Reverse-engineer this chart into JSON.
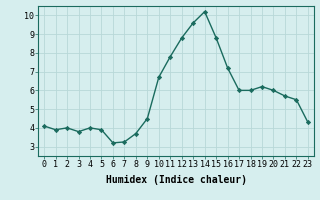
{
  "x": [
    0,
    1,
    2,
    3,
    4,
    5,
    6,
    7,
    8,
    9,
    10,
    11,
    12,
    13,
    14,
    15,
    16,
    17,
    18,
    19,
    20,
    21,
    22,
    23
  ],
  "y": [
    4.1,
    3.9,
    4.0,
    3.8,
    4.0,
    3.9,
    3.2,
    3.25,
    3.7,
    4.5,
    6.7,
    7.8,
    8.8,
    9.6,
    10.2,
    8.8,
    7.2,
    6.0,
    6.0,
    6.2,
    6.0,
    5.7,
    5.5,
    4.3
  ],
  "line_color": "#1a6b5e",
  "marker": "D",
  "marker_size": 2.2,
  "bg_color": "#d6eeee",
  "grid_color": "#b8d8d8",
  "xlabel": "Humidex (Indice chaleur)",
  "xlim": [
    -0.5,
    23.5
  ],
  "ylim": [
    2.5,
    10.5
  ],
  "yticks": [
    3,
    4,
    5,
    6,
    7,
    8,
    9,
    10
  ],
  "xticks": [
    0,
    1,
    2,
    3,
    4,
    5,
    6,
    7,
    8,
    9,
    10,
    11,
    12,
    13,
    14,
    15,
    16,
    17,
    18,
    19,
    20,
    21,
    22,
    23
  ],
  "xlabel_fontsize": 7,
  "tick_fontsize": 6,
  "line_width": 1.0
}
